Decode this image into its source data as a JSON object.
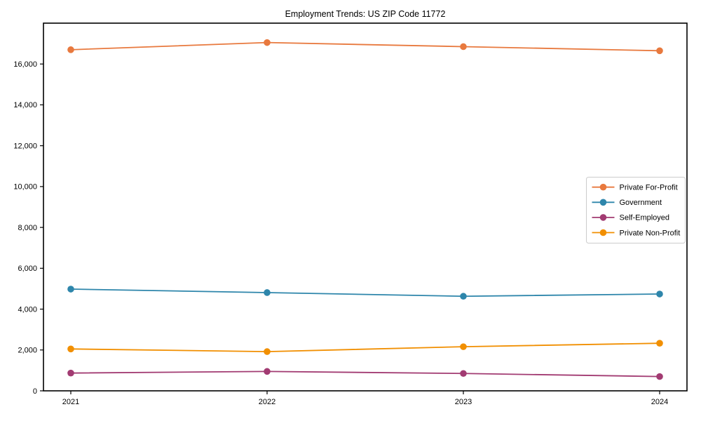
{
  "title": "Employment Trends: US ZIP Code 11772",
  "chart_data": {
    "type": "line",
    "x": [
      "2021",
      "2022",
      "2023",
      "2024"
    ],
    "series": [
      {
        "name": "Private For-Profit",
        "color": "#E8793E",
        "values": [
          16700,
          17050,
          16850,
          16650
        ]
      },
      {
        "name": "Government",
        "color": "#2E86AB",
        "values": [
          4980,
          4810,
          4630,
          4740
        ]
      },
      {
        "name": "Self-Employed",
        "color": "#A23B72",
        "values": [
          870,
          950,
          850,
          700
        ]
      },
      {
        "name": "Private Non-Profit",
        "color": "#F18F01",
        "values": [
          2050,
          1920,
          2160,
          2330
        ]
      }
    ],
    "title": "Employment Trends: US ZIP Code 11772",
    "xlabel": "",
    "ylabel": "",
    "ylim": [
      0,
      18000
    ],
    "yticks": [
      0,
      2000,
      4000,
      6000,
      8000,
      10000,
      12000,
      14000,
      16000
    ],
    "grid": false,
    "marker": "circle",
    "legend_position": "center-right",
    "axis_color": "#000000",
    "legend_border_color": "#cccccc",
    "background_color": "#ffffff"
  }
}
